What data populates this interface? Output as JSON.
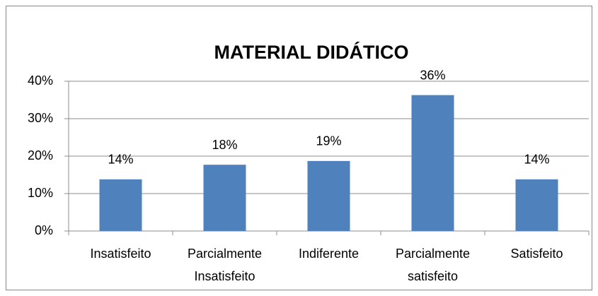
{
  "chart_data": {
    "type": "bar",
    "title": "MATERIAL DIDÁTICO",
    "categories": [
      "Insatisfeito",
      "Parcialmente Insatisfeito",
      "Indiferente",
      "Parcialmente satisfeito",
      "Satisfeito"
    ],
    "values": [
      13.8,
      17.7,
      18.7,
      36.3,
      13.8
    ],
    "value_labels": [
      "14%",
      "18%",
      "19%",
      "36%",
      "14%"
    ],
    "color": "#4f81bd",
    "ylim": [
      0,
      40
    ],
    "yticks": [
      {
        "value": 0,
        "label": "0%"
      },
      {
        "value": 10,
        "label": "10%"
      },
      {
        "value": 20,
        "label": "20%"
      },
      {
        "value": 30,
        "label": "30%"
      },
      {
        "value": 40,
        "label": "40%"
      }
    ],
    "grid": true
  }
}
